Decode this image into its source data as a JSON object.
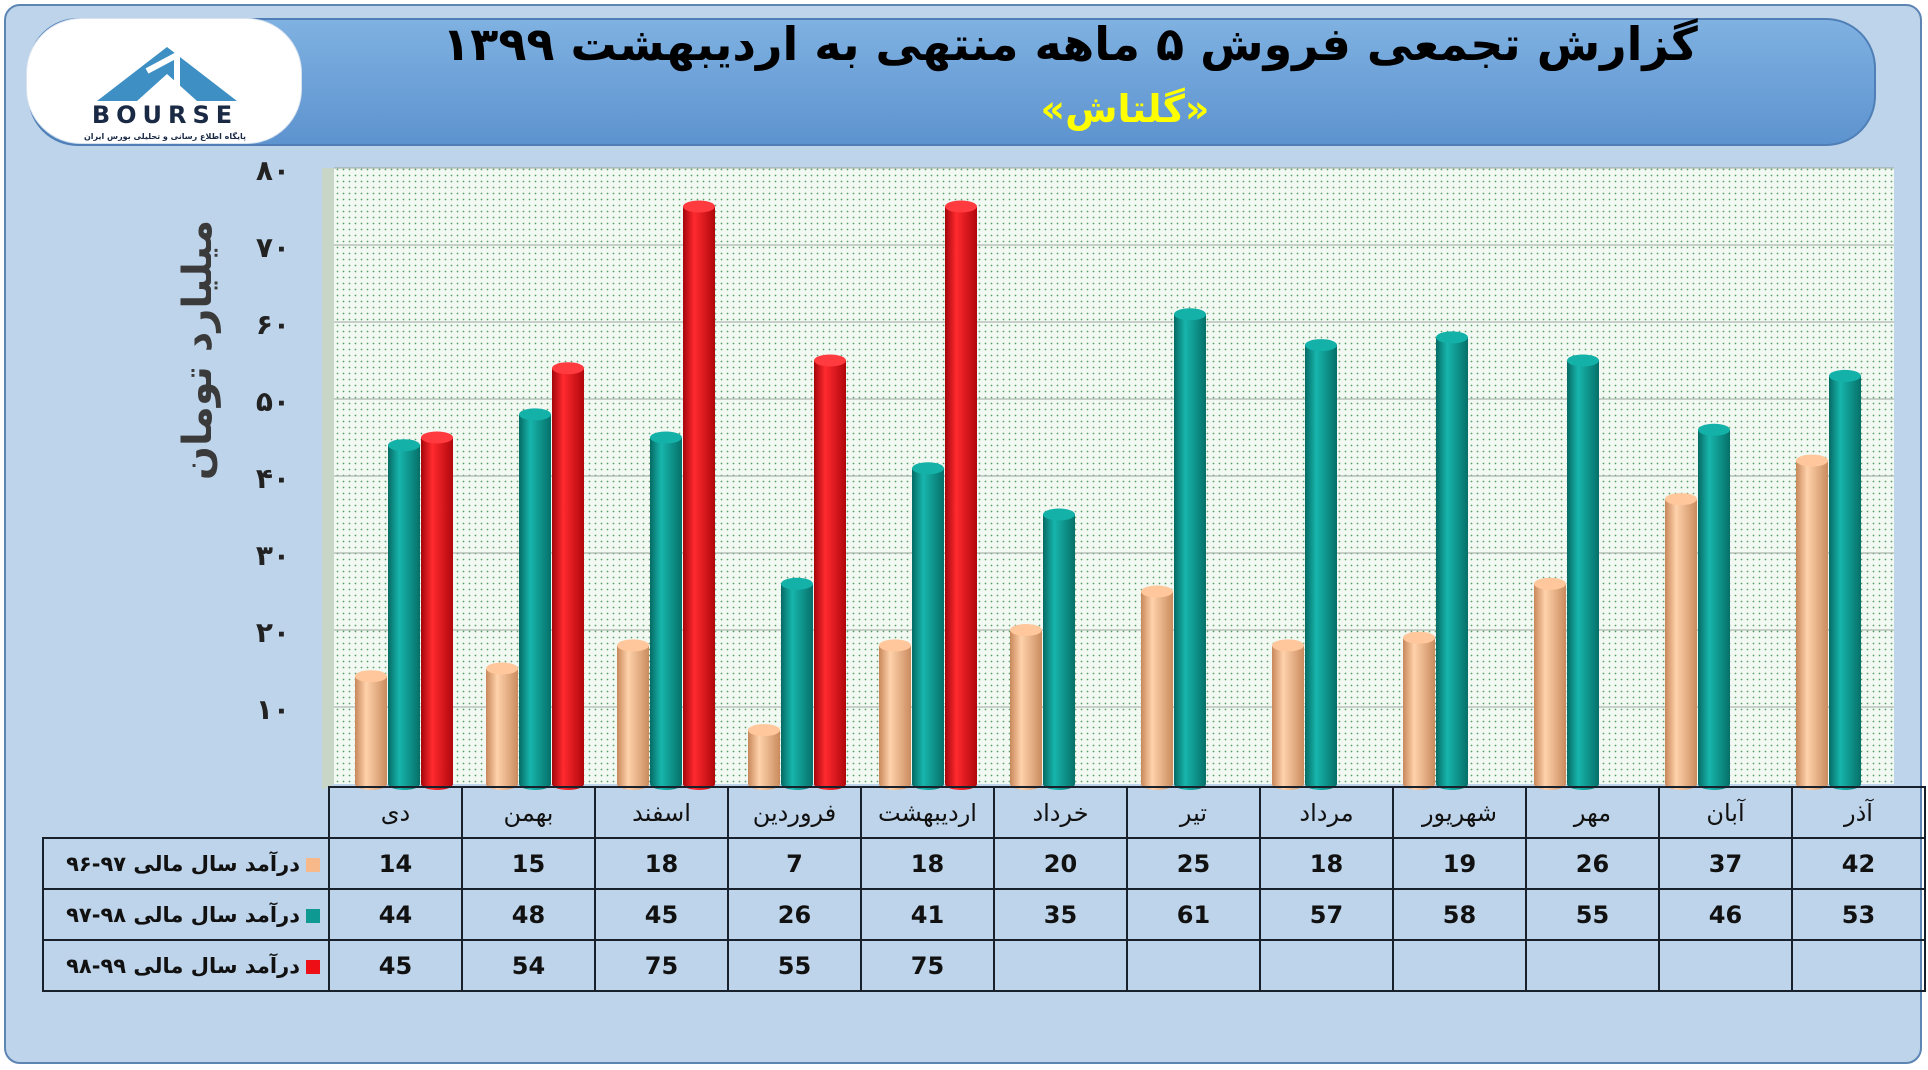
{
  "title": "گزارش تجمعی فروش ۵ ماهه منتهی به اردیبهشت ۱۳۹۹",
  "subtitle": "«گلتاش»",
  "logo": {
    "brand": "BOURSE",
    "tagline": "پایگاه اطلاع رسانی و تحلیلی بورس ایران"
  },
  "colors": {
    "panel": "#bed4ea",
    "banner": "#5d93cf",
    "series_96_97": "#f7b98a",
    "series_97_98": "#0e9a92",
    "series_98_99": "#ee0f16",
    "subtitle": "#ffff00"
  },
  "chart_data": {
    "type": "bar",
    "title": "گزارش تجمعی فروش ۵ ماهه منتهی به اردیبهشت ۱۳۹۹",
    "subtitle": "«گلتاش»",
    "ylabel": "میلیارد تومان",
    "xlabel": "",
    "ylim": [
      0,
      80
    ],
    "yticks": [
      "۱۰",
      "۲۰",
      "۳۰",
      "۴۰",
      "۵۰",
      "۶۰",
      "۷۰",
      "۸۰"
    ],
    "ytick_values": [
      10,
      20,
      30,
      40,
      50,
      60,
      70,
      80
    ],
    "grid": true,
    "legend": "table-below",
    "categories": [
      "دی",
      "بهمن",
      "اسفند",
      "فروردین",
      "اردیبهشت",
      "خرداد",
      "تیر",
      "مرداد",
      "شهریور",
      "مهر",
      "آبان",
      "آذر"
    ],
    "series": [
      {
        "name": "درآمد سال مالی ۹۷-۹۶",
        "values": [
          14,
          15,
          18,
          7,
          18,
          20,
          25,
          18,
          19,
          26,
          37,
          42
        ]
      },
      {
        "name": "درآمد سال مالی ۹۸-۹۷",
        "values": [
          44,
          48,
          45,
          26,
          41,
          35,
          61,
          57,
          58,
          55,
          46,
          53
        ]
      },
      {
        "name": "درآمد سال مالی ۹۹-۹۸",
        "values": [
          45,
          54,
          75,
          55,
          75,
          null,
          null,
          null,
          null,
          null,
          null,
          null
        ]
      }
    ]
  }
}
